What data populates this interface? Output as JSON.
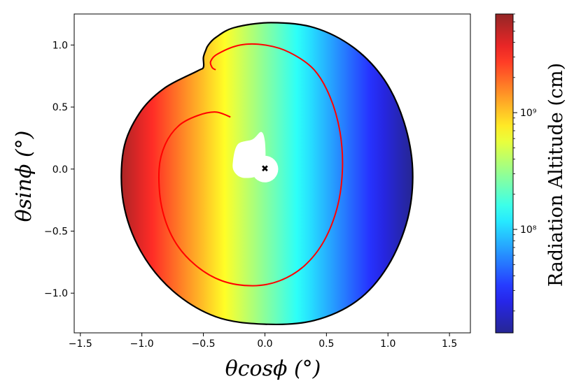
{
  "chart_data": {
    "type": "heatmap",
    "description_free": true,
    "xlabel": "θcosϕ (°)",
    "ylabel": "θsinϕ (°)",
    "xlim": [
      -1.55,
      1.67
    ],
    "ylim": [
      -1.32,
      1.25
    ],
    "x_ticks": [
      -1.5,
      -1.0,
      -0.5,
      0.0,
      0.5,
      1.0,
      1.5
    ],
    "x_tick_labels": [
      "−1.5",
      "−1.0",
      "−0.5",
      "0.0",
      "0.5",
      "1.0",
      "1.5"
    ],
    "y_ticks": [
      -1.0,
      -0.5,
      0.0,
      0.5,
      1.0
    ],
    "y_tick_labels": [
      "−1.0",
      "−0.5",
      "0.0",
      "0.5",
      "1.0"
    ],
    "grid": false,
    "colormap": "jet",
    "colorbar": {
      "label": "Radiation Altitude (cm)",
      "scale": "log",
      "range": [
        13000000.0,
        7000000000.0
      ],
      "ticks": [
        100000000.0,
        1000000000.0
      ],
      "tick_labels": [
        "10⁸",
        "10⁹"
      ]
    },
    "outer_boundary": {
      "color": "#000000",
      "points": [
        [
          0.05,
          1.18
        ],
        [
          0.4,
          1.14
        ],
        [
          0.72,
          0.98
        ],
        [
          0.97,
          0.72
        ],
        [
          1.13,
          0.38
        ],
        [
          1.2,
          0.0
        ],
        [
          1.16,
          -0.4
        ],
        [
          1.0,
          -0.78
        ],
        [
          0.75,
          -1.06
        ],
        [
          0.4,
          -1.22
        ],
        [
          0.0,
          -1.25
        ],
        [
          -0.4,
          -1.19
        ],
        [
          -0.75,
          -0.98
        ],
        [
          -1.01,
          -0.66
        ],
        [
          -1.15,
          -0.27
        ],
        [
          -1.15,
          0.15
        ],
        [
          -1.02,
          0.45
        ],
        [
          -0.82,
          0.65
        ],
        [
          -0.55,
          0.79
        ],
        [
          -0.5,
          0.82
        ],
        [
          -0.5,
          0.9
        ],
        [
          -0.48,
          0.96
        ],
        [
          -0.46,
          1.0
        ],
        [
          -0.4,
          1.06
        ],
        [
          -0.25,
          1.14
        ]
      ]
    },
    "contour": {
      "color": "#ff0000",
      "points": [
        [
          -0.4,
          0.8
        ],
        [
          -0.43,
          0.82
        ],
        [
          -0.44,
          0.87
        ],
        [
          -0.38,
          0.93
        ],
        [
          -0.2,
          1.0
        ],
        [
          0.0,
          1.0
        ],
        [
          0.2,
          0.94
        ],
        [
          0.4,
          0.8
        ],
        [
          0.53,
          0.58
        ],
        [
          0.61,
          0.3
        ],
        [
          0.63,
          0.0
        ],
        [
          0.59,
          -0.3
        ],
        [
          0.48,
          -0.58
        ],
        [
          0.32,
          -0.78
        ],
        [
          0.12,
          -0.9
        ],
        [
          -0.1,
          -0.94
        ],
        [
          -0.35,
          -0.9
        ],
        [
          -0.57,
          -0.77
        ],
        [
          -0.74,
          -0.57
        ],
        [
          -0.84,
          -0.3
        ],
        [
          -0.86,
          0.0
        ],
        [
          -0.81,
          0.2
        ],
        [
          -0.7,
          0.35
        ],
        [
          -0.55,
          0.43
        ],
        [
          -0.4,
          0.46
        ],
        [
          -0.28,
          0.42
        ]
      ]
    },
    "center_marker": {
      "x": 0.0,
      "y": 0.0,
      "symbol": "✖",
      "color": "#000000"
    },
    "value_field": {
      "model": "log10(altitude) decreases linearly with x",
      "x_at_max": -1.15,
      "log10_max": 9.75,
      "x_at_min": 1.2,
      "log10_min": 7.1
    }
  }
}
